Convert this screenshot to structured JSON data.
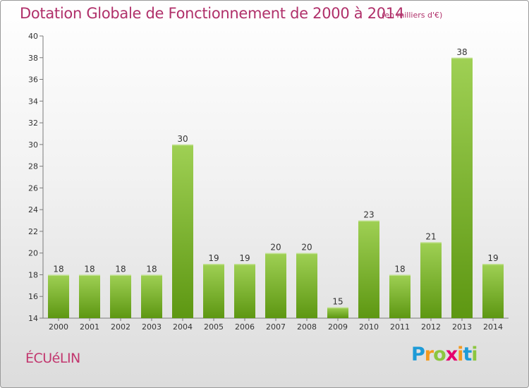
{
  "header": {
    "title": "Dotation Globale de Fonctionnement de 2000 à 2014",
    "unit": "(en milliers d'€)"
  },
  "commune": "ÉCUéLIN",
  "logo": {
    "letters": [
      "P",
      "r",
      "o",
      "x",
      "i",
      "t",
      "i"
    ],
    "colors": [
      "#1e9bd7",
      "#f39a1f",
      "#8cc63f",
      "#e5006d",
      "#f39a1f",
      "#1e9bd7",
      "#8cc63f"
    ]
  },
  "colors": {
    "bar_light": "#9fd054",
    "bar_dark": "#5d9712",
    "title": "#b0306a"
  },
  "chart_data": {
    "type": "bar",
    "categories": [
      "2000",
      "2001",
      "2002",
      "2003",
      "2004",
      "2005",
      "2006",
      "2007",
      "2008",
      "2009",
      "2010",
      "2011",
      "2012",
      "2013",
      "2014"
    ],
    "values": [
      18,
      18,
      18,
      18,
      30,
      19,
      19,
      20,
      20,
      15,
      23,
      18,
      21,
      38,
      19
    ],
    "ylim": [
      14,
      40
    ],
    "yticks": [
      14,
      16,
      18,
      20,
      22,
      24,
      26,
      28,
      30,
      32,
      34,
      36,
      38,
      40
    ],
    "xlabel": "",
    "ylabel": "",
    "grid": false,
    "data_labels": true
  }
}
